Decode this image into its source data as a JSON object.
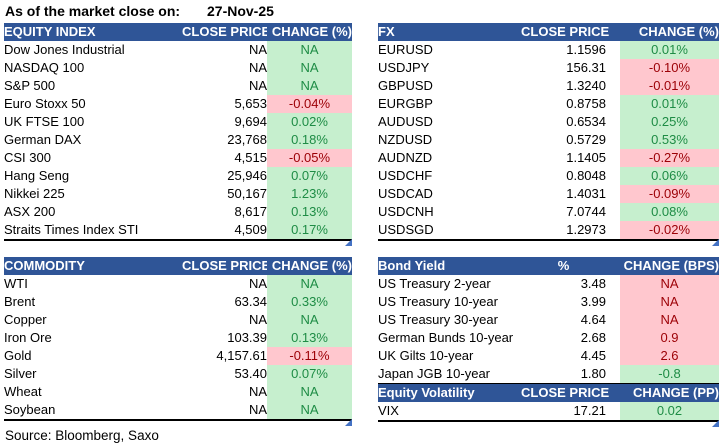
{
  "meta": {
    "as_of_label": "As of the market close on:",
    "as_of_date": "27-Nov-25",
    "source": "Source: Bloomberg, Saxo"
  },
  "colors": {
    "header_bg": "#2F5597",
    "header_text": "#FFFFFF",
    "positive_bg": "#C6EFCE",
    "positive_text": "#1E8C45",
    "negative_bg": "#FFC7CE",
    "negative_text": "#9C0006",
    "corner_marker": "#4472C4"
  },
  "tables": {
    "equity_index": {
      "title": "EQUITY INDEX",
      "col_price": "CLOSE PRICE",
      "col_change": "CHANGE (%)",
      "rows": [
        {
          "name": "Dow Jones Industrial",
          "price": "NA",
          "change": "NA",
          "status": "good"
        },
        {
          "name": "NASDAQ 100",
          "price": "NA",
          "change": "NA",
          "status": "good"
        },
        {
          "name": "S&P 500",
          "price": "NA",
          "change": "NA",
          "status": "good"
        },
        {
          "name": "Euro Stoxx 50",
          "price": "5,653",
          "change": "-0.04%",
          "status": "bad"
        },
        {
          "name": "UK FTSE 100",
          "price": "9,694",
          "change": "0.02%",
          "status": "good"
        },
        {
          "name": "German DAX",
          "price": "23,768",
          "change": "0.18%",
          "status": "good"
        },
        {
          "name": "CSI 300",
          "price": "4,515",
          "change": "-0.05%",
          "status": "bad"
        },
        {
          "name": "Hang Seng",
          "price": "25,946",
          "change": "0.07%",
          "status": "good"
        },
        {
          "name": "Nikkei 225",
          "price": "50,167",
          "change": "1.23%",
          "status": "good"
        },
        {
          "name": "ASX 200",
          "price": "8,617",
          "change": "0.13%",
          "status": "good"
        },
        {
          "name": "Straits Times Index STI",
          "price": "4,509",
          "change": "0.17%",
          "status": "good"
        }
      ]
    },
    "fx": {
      "title": "FX",
      "col_price": "CLOSE PRICE",
      "col_change": "CHANGE (%)",
      "rows": [
        {
          "name": "EURUSD",
          "price": "1.1596",
          "change": "0.01%",
          "status": "good"
        },
        {
          "name": "USDJPY",
          "price": "156.31",
          "change": "-0.10%",
          "status": "bad"
        },
        {
          "name": "GBPUSD",
          "price": "1.3240",
          "change": "-0.01%",
          "status": "bad"
        },
        {
          "name": "EURGBP",
          "price": "0.8758",
          "change": "0.01%",
          "status": "good"
        },
        {
          "name": "AUDUSD",
          "price": "0.6534",
          "change": "0.25%",
          "status": "good"
        },
        {
          "name": "NZDUSD",
          "price": "0.5729",
          "change": "0.53%",
          "status": "good"
        },
        {
          "name": "AUDNZD",
          "price": "1.1405",
          "change": "-0.27%",
          "status": "bad"
        },
        {
          "name": "USDCHF",
          "price": "0.8048",
          "change": "0.06%",
          "status": "good"
        },
        {
          "name": "USDCAD",
          "price": "1.4031",
          "change": "-0.09%",
          "status": "bad"
        },
        {
          "name": "USDCNH",
          "price": "7.0744",
          "change": "0.08%",
          "status": "good"
        },
        {
          "name": "USDSGD",
          "price": "1.2973",
          "change": "-0.02%",
          "status": "bad"
        }
      ]
    },
    "commodity": {
      "title": "COMMODITY",
      "col_price": "CLOSE PRICE",
      "col_change": "CHANGE (%)",
      "rows": [
        {
          "name": "WTI",
          "price": "NA",
          "change": "NA",
          "status": "good"
        },
        {
          "name": "Brent",
          "price": "63.34",
          "change": "0.33%",
          "status": "good"
        },
        {
          "name": "Copper",
          "price": "NA",
          "change": "NA",
          "status": "good"
        },
        {
          "name": "Iron Ore",
          "price": "103.39",
          "change": "0.13%",
          "status": "good"
        },
        {
          "name": "Gold",
          "price": "4,157.61",
          "change": "-0.11%",
          "status": "bad"
        },
        {
          "name": "Silver",
          "price": "53.40",
          "change": "0.07%",
          "status": "good"
        },
        {
          "name": "Wheat",
          "price": "NA",
          "change": "NA",
          "status": "good"
        },
        {
          "name": "Soybean",
          "price": "NA",
          "change": "NA",
          "status": "good"
        }
      ]
    },
    "bond_yield": {
      "title": "Bond Yield",
      "col_price": "%",
      "col_change": "CHANGE (BPS)",
      "rows": [
        {
          "name": "US Treasury 2-year",
          "price": "3.48",
          "change": "NA",
          "status": "bad"
        },
        {
          "name": "US Treasury 10-year",
          "price": "3.99",
          "change": "NA",
          "status": "bad"
        },
        {
          "name": "US Treasury 30-year",
          "price": "4.64",
          "change": "NA",
          "status": "bad"
        },
        {
          "name": "German Bunds 10-year",
          "price": "2.68",
          "change": "0.9",
          "status": "bad"
        },
        {
          "name": "UK Gilts 10-year",
          "price": "4.45",
          "change": "2.6",
          "status": "bad"
        },
        {
          "name": "Japan JGB 10-year",
          "price": "1.80",
          "change": "-0.8",
          "status": "good"
        }
      ]
    },
    "equity_volatility": {
      "title": "Equity Volatility",
      "col_price": "CLOSE PRICE",
      "col_change": "CHANGE (PP)",
      "rows": [
        {
          "name": "VIX",
          "price": "17.21",
          "change": "0.02",
          "status": "good"
        }
      ]
    }
  }
}
